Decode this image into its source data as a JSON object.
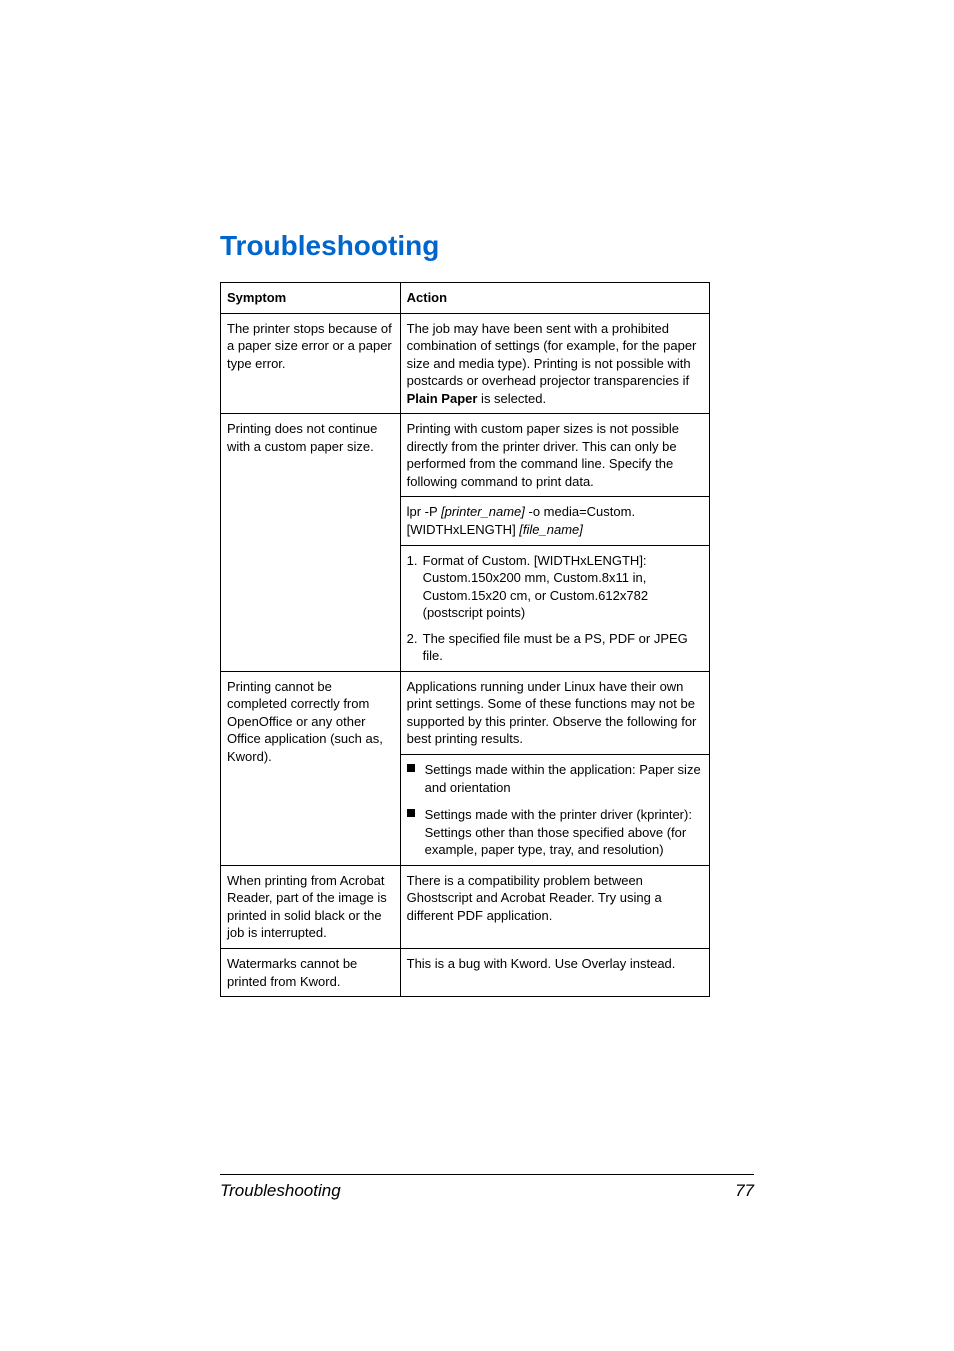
{
  "title": "Troubleshooting",
  "table": {
    "headers": {
      "symptom": "Symptom",
      "action": "Action"
    },
    "rows": [
      {
        "symptom": "The printer stops because of a paper size error or a paper type error.",
        "action_p1_a": "The job may have been sent with a prohibited combination of settings (for example, for the paper size and media type). Printing is not possible with postcards or overhead projector transparencies if ",
        "action_p1_bold": "Plain Paper",
        "action_p1_b": " is selected."
      },
      {
        "symptom": "Printing does not continue with a custom paper size.",
        "action_p1": "Printing with custom paper sizes is not possible directly from the printer driver. This can only be performed from the command line. Specify the following command to print data.",
        "action_cmd_a": "lpr -P ",
        "action_cmd_i1": "[printer_name] ",
        "action_cmd_b": "-o media=Custom. [WIDTHxLENGTH] ",
        "action_cmd_i2": "[file_name]",
        "action_li1": "Format of Custom. [WIDTHxLENGTH]: Custom.150x200 mm, Custom.8x11 in, Custom.15x20 cm, or Custom.612x782 (postscript points)",
        "action_li2": "The specified file must be a PS, PDF or JPEG file."
      },
      {
        "symptom": "Printing cannot be completed correctly from OpenOffice or any other Office application (such as, Kword).",
        "action_p1": "Applications running under Linux have their own print settings. Some of these functions may not be supported by this printer. Observe the following for best printing results.",
        "action_b1": "Settings made within the application: Paper size and orientation",
        "action_b2": "Settings made with the printer driver (kprinter): Settings other than those specified above (for example, paper type, tray, and resolution)"
      },
      {
        "symptom": "When printing from Acrobat Reader, part of the image is printed in solid black or the job is interrupted.",
        "action_p1": "There is a compatibility problem between Ghostscript and Acrobat Reader. Try using a different PDF application."
      },
      {
        "symptom": "Watermarks cannot be printed from Kword.",
        "action_p1": "This is a bug with Kword. Use Overlay instead."
      }
    ]
  },
  "footer": {
    "label": "Troubleshooting",
    "page": "77"
  }
}
